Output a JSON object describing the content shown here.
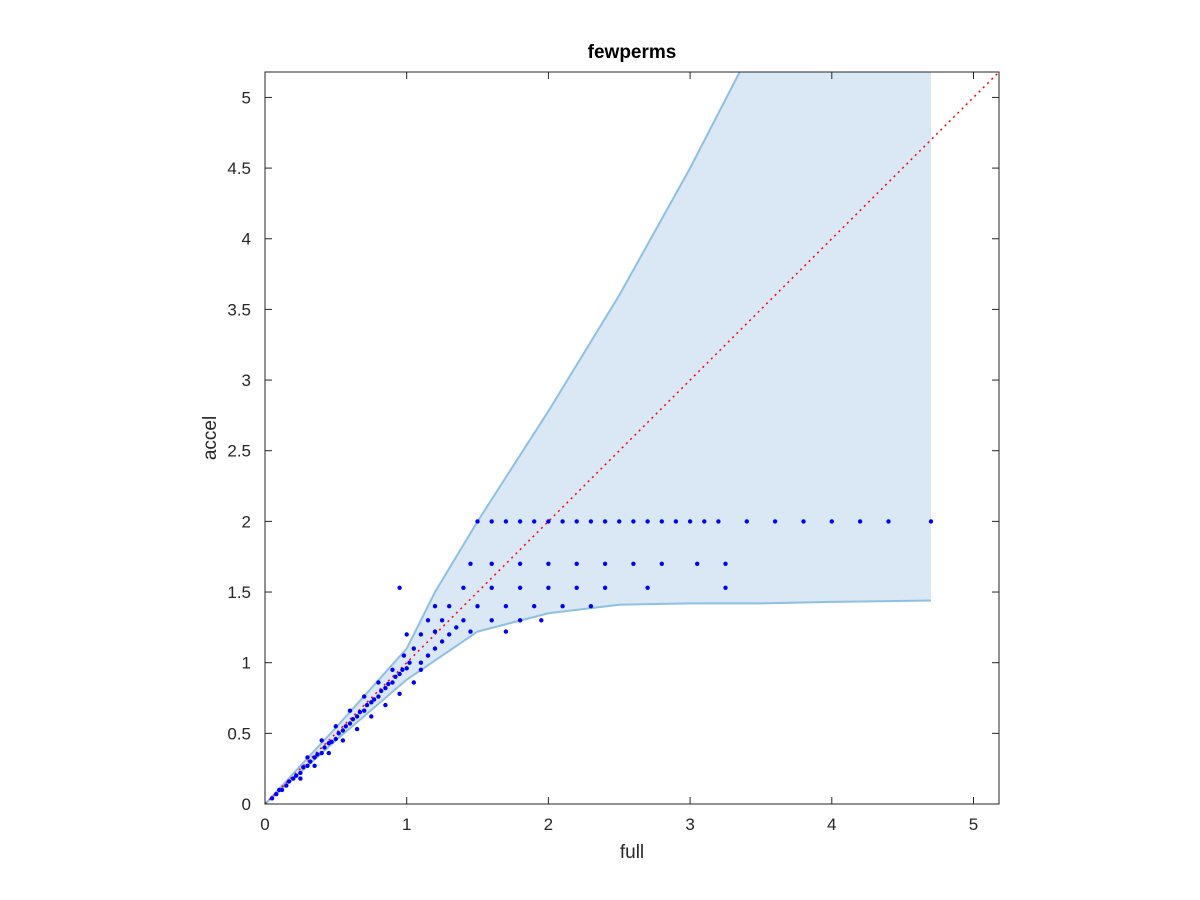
{
  "chart_data": {
    "type": "scatter",
    "title": "fewperms",
    "xlabel": "full",
    "ylabel": "accel",
    "xlim": [
      0,
      5.18
    ],
    "ylim": [
      0,
      5.18
    ],
    "xticks": [
      "0",
      "1",
      "2",
      "3",
      "4",
      "5"
    ],
    "yticks": [
      "0",
      "0.5",
      "1",
      "1.5",
      "2",
      "2.5",
      "3",
      "3.5",
      "4",
      "4.5",
      "5"
    ],
    "grid": false,
    "box": true,
    "colors": {
      "points": "#0000ff",
      "band_fill": "#d9e8f4",
      "band_edge": "#8fc0e0",
      "reference_line": "#ff0000",
      "axes": "#262626"
    },
    "band": {
      "upper": [
        [
          0,
          0
        ],
        [
          0.5,
          0.54
        ],
        [
          1.0,
          1.1
        ],
        [
          1.2,
          1.5
        ],
        [
          1.5,
          2.0
        ],
        [
          2.0,
          2.78
        ],
        [
          2.5,
          3.6
        ],
        [
          3.0,
          4.5
        ],
        [
          3.35,
          5.18
        ],
        [
          4.7,
          5.18
        ]
      ],
      "lower": [
        [
          0,
          0
        ],
        [
          0.5,
          0.45
        ],
        [
          1.0,
          0.88
        ],
        [
          1.5,
          1.22
        ],
        [
          2.0,
          1.35
        ],
        [
          2.5,
          1.41
        ],
        [
          3.0,
          1.42
        ],
        [
          3.5,
          1.42
        ],
        [
          4.0,
          1.43
        ],
        [
          4.7,
          1.44
        ]
      ]
    },
    "reference_line": {
      "from": [
        0,
        0
      ],
      "to": [
        5.18,
        5.18
      ],
      "style": "dotted"
    },
    "series": [
      {
        "values": [
          [
            0.05,
            0.04
          ],
          [
            0.08,
            0.07
          ],
          [
            0.1,
            0.1
          ],
          [
            0.12,
            0.1
          ],
          [
            0.15,
            0.13
          ],
          [
            0.17,
            0.16
          ],
          [
            0.2,
            0.18
          ],
          [
            0.22,
            0.2
          ],
          [
            0.25,
            0.22
          ],
          [
            0.27,
            0.26
          ],
          [
            0.3,
            0.27
          ],
          [
            0.32,
            0.3
          ],
          [
            0.35,
            0.33
          ],
          [
            0.37,
            0.35
          ],
          [
            0.4,
            0.36
          ],
          [
            0.42,
            0.4
          ],
          [
            0.45,
            0.43
          ],
          [
            0.47,
            0.44
          ],
          [
            0.5,
            0.46
          ],
          [
            0.52,
            0.5
          ],
          [
            0.55,
            0.52
          ],
          [
            0.57,
            0.55
          ],
          [
            0.6,
            0.57
          ],
          [
            0.62,
            0.6
          ],
          [
            0.65,
            0.62
          ],
          [
            0.67,
            0.65
          ],
          [
            0.7,
            0.66
          ],
          [
            0.72,
            0.7
          ],
          [
            0.75,
            0.72
          ],
          [
            0.77,
            0.74
          ],
          [
            0.8,
            0.76
          ],
          [
            0.82,
            0.8
          ],
          [
            0.85,
            0.82
          ],
          [
            0.87,
            0.85
          ],
          [
            0.9,
            0.86
          ],
          [
            0.92,
            0.9
          ],
          [
            0.95,
            0.92
          ],
          [
            0.97,
            0.95
          ],
          [
            1.0,
            0.96
          ],
          [
            1.02,
            1.0
          ],
          [
            0.3,
            0.33
          ],
          [
            0.4,
            0.45
          ],
          [
            0.5,
            0.55
          ],
          [
            0.6,
            0.66
          ],
          [
            0.7,
            0.76
          ],
          [
            0.8,
            0.86
          ],
          [
            0.9,
            0.95
          ],
          [
            0.98,
            1.05
          ],
          [
            0.95,
            1.53
          ],
          [
            1.0,
            1.2
          ],
          [
            0.25,
            0.18
          ],
          [
            0.35,
            0.27
          ],
          [
            0.45,
            0.36
          ],
          [
            0.55,
            0.45
          ],
          [
            0.65,
            0.53
          ],
          [
            0.75,
            0.62
          ],
          [
            0.85,
            0.7
          ],
          [
            0.95,
            0.78
          ],
          [
            1.05,
            0.86
          ],
          [
            1.1,
            0.95
          ],
          [
            1.05,
            1.1
          ],
          [
            1.1,
            1.2
          ],
          [
            1.15,
            1.3
          ],
          [
            1.2,
            1.4
          ],
          [
            1.1,
            1.0
          ],
          [
            1.15,
            1.05
          ],
          [
            1.2,
            1.1
          ],
          [
            1.25,
            1.15
          ],
          [
            1.3,
            1.2
          ],
          [
            1.35,
            1.25
          ],
          [
            1.5,
            2.0
          ],
          [
            1.6,
            2.0
          ],
          [
            1.7,
            2.0
          ],
          [
            1.8,
            2.0
          ],
          [
            1.9,
            2.0
          ],
          [
            2.0,
            2.0
          ],
          [
            2.1,
            2.0
          ],
          [
            2.2,
            2.0
          ],
          [
            2.3,
            2.0
          ],
          [
            2.4,
            2.0
          ],
          [
            2.5,
            2.0
          ],
          [
            2.6,
            2.0
          ],
          [
            2.7,
            2.0
          ],
          [
            2.8,
            2.0
          ],
          [
            2.9,
            2.0
          ],
          [
            3.0,
            2.0
          ],
          [
            3.1,
            2.0
          ],
          [
            3.2,
            2.0
          ],
          [
            3.4,
            2.0
          ],
          [
            3.6,
            2.0
          ],
          [
            3.8,
            2.0
          ],
          [
            4.0,
            2.0
          ],
          [
            4.2,
            2.0
          ],
          [
            4.4,
            2.0
          ],
          [
            4.7,
            2.0
          ],
          [
            1.45,
            1.7
          ],
          [
            1.6,
            1.7
          ],
          [
            1.8,
            1.7
          ],
          [
            2.0,
            1.7
          ],
          [
            2.2,
            1.7
          ],
          [
            2.4,
            1.7
          ],
          [
            2.6,
            1.7
          ],
          [
            2.8,
            1.7
          ],
          [
            3.05,
            1.7
          ],
          [
            3.25,
            1.7
          ],
          [
            1.4,
            1.53
          ],
          [
            1.6,
            1.53
          ],
          [
            1.8,
            1.53
          ],
          [
            2.0,
            1.53
          ],
          [
            2.2,
            1.53
          ],
          [
            2.4,
            1.53
          ],
          [
            2.7,
            1.53
          ],
          [
            3.25,
            1.53
          ],
          [
            1.3,
            1.4
          ],
          [
            1.5,
            1.4
          ],
          [
            1.7,
            1.4
          ],
          [
            1.9,
            1.4
          ],
          [
            2.1,
            1.4
          ],
          [
            2.3,
            1.4
          ],
          [
            1.25,
            1.3
          ],
          [
            1.4,
            1.3
          ],
          [
            1.6,
            1.3
          ],
          [
            1.8,
            1.3
          ],
          [
            1.95,
            1.3
          ],
          [
            1.2,
            1.22
          ],
          [
            1.45,
            1.22
          ],
          [
            1.7,
            1.22
          ]
        ]
      }
    ]
  }
}
